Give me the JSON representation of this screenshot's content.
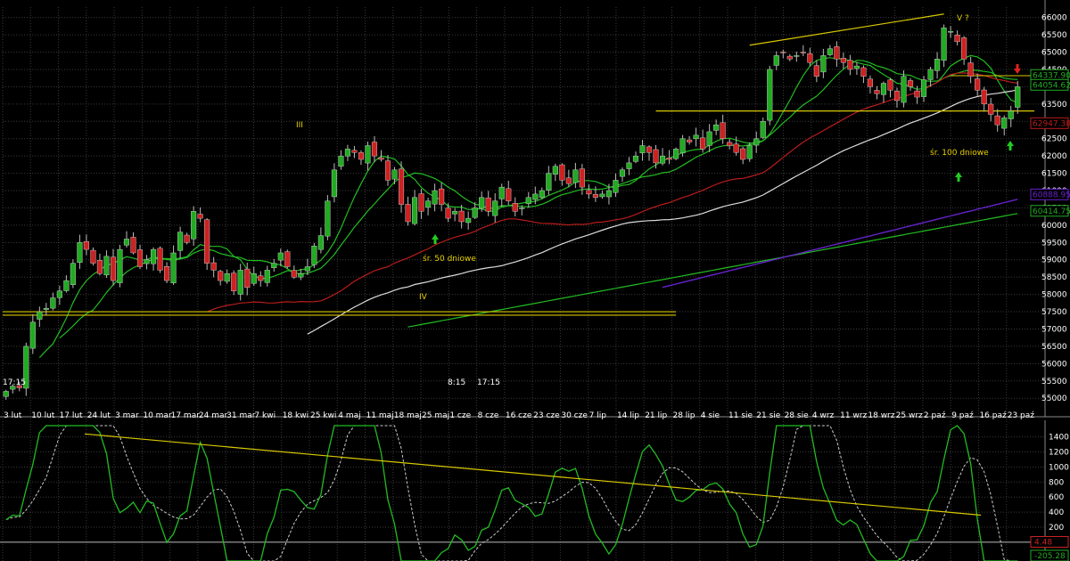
{
  "colors": {
    "background": "#000000",
    "grid": "#3a3a3a",
    "up_candle": "#22aa22",
    "down_candle": "#cc2222",
    "sma50": "#22bb22",
    "sma100": "#b81c1c",
    "sma200": "#dddddd",
    "sma_long": "#6622cc",
    "trendline": "#d8c800",
    "oscillator": "#22bb22",
    "signal": "#cccccc"
  },
  "chart_data": [
    {
      "type": "candlestick",
      "ylim": [
        54800,
        66300
      ],
      "y_ticks": [
        "66000",
        "65500",
        "65000",
        "64500",
        "64000",
        "63500",
        "63000",
        "62500",
        "62000",
        "61500",
        "61000",
        "60500",
        "60000",
        "59500",
        "59000",
        "58500",
        "58000",
        "57500",
        "57000",
        "56500",
        "56000",
        "55500",
        "55000"
      ],
      "y_tick_values": [
        66000,
        65500,
        65000,
        64500,
        64000,
        63500,
        63000,
        62500,
        62000,
        61500,
        61000,
        60500,
        60000,
        59500,
        59000,
        58500,
        58000,
        57500,
        57000,
        56500,
        56000,
        55500,
        55000
      ],
      "x_labels": [
        "3 lut",
        "10 lut",
        "17 lut",
        "24 lut",
        "3 mar",
        "10 mar",
        "17 mar",
        "24 mar",
        "31 mar",
        "7 kwi",
        "18 kwi",
        "25 kwi",
        "4 maj",
        "11 maj",
        "18 maj",
        "25 maj",
        "1 cze",
        "8 cze",
        "16 cze",
        "23 cze",
        "30 cze",
        "7 lip",
        "14 lip",
        "21 lip",
        "28 lip",
        "4 sie",
        "11 sie",
        "21 sie",
        "28 sie",
        "4 wrz",
        "11 wrz",
        "18 wrz",
        "25 wrz",
        "2 paź",
        "9 paź",
        "16 paź",
        "23 paź"
      ],
      "session_labels": [
        "17:15",
        "8:15",
        "17:15"
      ],
      "closes": [
        55200,
        55350,
        55300,
        56500,
        57200,
        57500,
        57600,
        57900,
        58100,
        58400,
        58900,
        59500,
        59300,
        58900,
        58600,
        59100,
        58400,
        59300,
        59600,
        59200,
        58800,
        59000,
        59300,
        58700,
        58400,
        59200,
        59800,
        59500,
        60400,
        60200,
        58900,
        58700,
        58400,
        58600,
        58100,
        58700,
        58200,
        58600,
        58400,
        58700,
        58900,
        59200,
        58800,
        58500,
        58600,
        58800,
        59400,
        59700,
        60700,
        61600,
        62000,
        62200,
        62100,
        61900,
        62300,
        62000,
        61900,
        61300,
        61600,
        60600,
        60100,
        60800,
        60400,
        60700,
        61000,
        60600,
        60200,
        60400,
        60100,
        60200,
        60500,
        60800,
        60400,
        60700,
        61100,
        60700,
        60400,
        60500,
        60800,
        60900,
        61000,
        61500,
        61700,
        61300,
        61200,
        61600,
        61100,
        60900,
        60800,
        60900,
        61000,
        61300,
        61600,
        61800,
        62000,
        62300,
        62100,
        61800,
        62000,
        61900,
        62200,
        62500,
        62400,
        62600,
        62200,
        62700,
        62900,
        62500,
        62300,
        62100,
        61900,
        62300,
        62500,
        63000,
        64500,
        64900,
        65000,
        64800,
        64900,
        65000,
        64700,
        64300,
        64900,
        65100,
        64800,
        64700,
        64500,
        64600,
        64300,
        64000,
        63800,
        64100,
        63900,
        63600,
        64300,
        64000,
        63700,
        64200,
        64500,
        64800,
        65700,
        65600,
        65300,
        64800,
        64300,
        63900,
        63500,
        63200,
        62900,
        63100,
        63300,
        64000
      ],
      "moving_averages": [
        "śr. 50 dniowe",
        "śr. 100 dniowe"
      ],
      "annotations": [
        "III",
        "IV",
        "V ?"
      ],
      "price_tags": [
        {
          "label": "64337.90",
          "color": "#22aa22"
        },
        {
          "label": "64054.62",
          "color": "#22aa22"
        },
        {
          "label": "62947.38",
          "color": "#b81c1c"
        },
        {
          "label": "60888.95",
          "color": "#6622cc"
        },
        {
          "label": "60414.75",
          "color": "#22aa22"
        }
      ],
      "horizontal_levels": [
        57400,
        57500,
        63300,
        64320
      ]
    },
    {
      "type": "line",
      "ylim": [
        -250,
        1550
      ],
      "y_ticks": [
        "1400",
        "1200",
        "1000",
        "800",
        "600",
        "400",
        "200"
      ],
      "y_tick_values": [
        1400,
        1200,
        1000,
        800,
        600,
        400,
        200
      ],
      "zero_line": 0,
      "price_tags": [
        {
          "label": "4.48",
          "color": "#cc2222"
        },
        {
          "label": "-205.28",
          "color": "#22aa22"
        }
      ]
    }
  ],
  "texts": {
    "ma50_label": "śr. 50 dniowe",
    "ma100_label": "śr. 100 dniowe",
    "wave3": "III",
    "wave4": "IV",
    "wave5": "V ?",
    "time1": "17:15",
    "time2": "8:15",
    "time3": "17:15"
  }
}
